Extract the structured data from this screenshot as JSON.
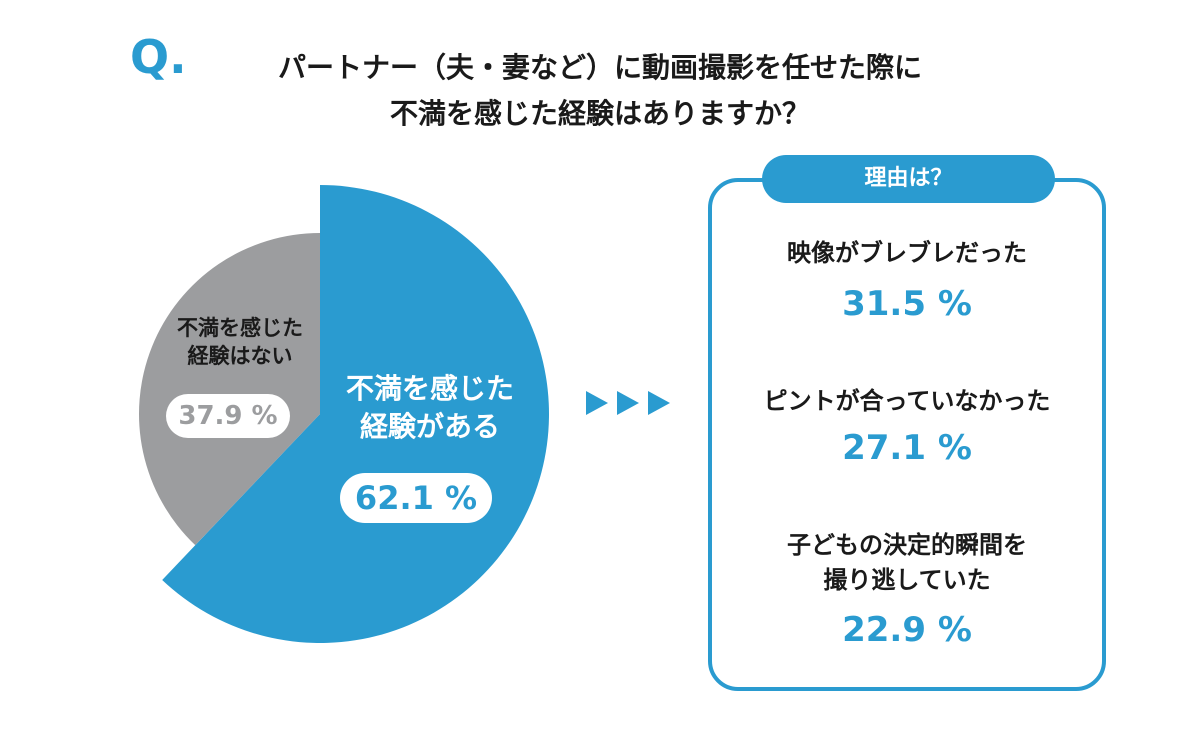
{
  "q_mark": "Q.",
  "title_line1": "パートナー（夫・妻など）に動画撮影を任せた際に",
  "title_line2": "不満を感じた経験はありますか？",
  "colors": {
    "accent": "#2a9bd0",
    "gray": "#9c9d9f"
  },
  "chart_data": {
    "type": "pie",
    "title": "パートナー（夫・妻など）に動画撮影を任せた際に不満を感じた経験はありますか？",
    "slices": [
      {
        "label_line1": "不満を感じた",
        "label_line2": "経験がある",
        "value": 62.1,
        "value_label": "62.1 %",
        "color": "#2a9bd0"
      },
      {
        "label_line1": "不満を感じた",
        "label_line2": "経験はない",
        "value": 37.9,
        "value_label": "37.9 %",
        "color": "#9c9d9f"
      }
    ]
  },
  "reasons": {
    "header": "理由は？",
    "items": [
      {
        "line1": "映像がブレブレだった",
        "line2": "",
        "value": 31.5,
        "value_label": "31.5 %"
      },
      {
        "line1": "ピントが合っていなかった",
        "line2": "",
        "value": 27.1,
        "value_label": "27.1 %"
      },
      {
        "line1": "子どもの決定的瞬間を",
        "line2": "撮り逃していた",
        "value": 22.9,
        "value_label": "22.9 %"
      }
    ]
  }
}
